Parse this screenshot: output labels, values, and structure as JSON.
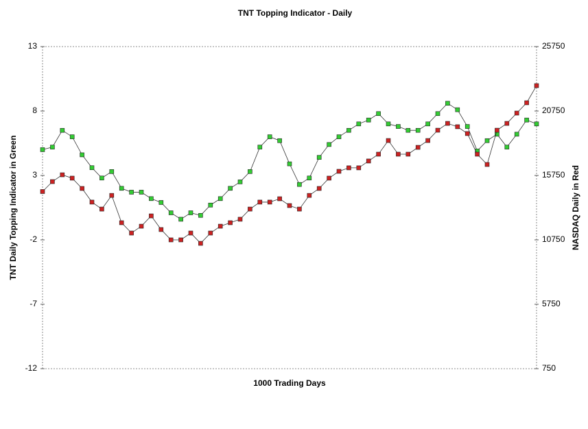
{
  "chart_data": {
    "type": "scatter-line",
    "title": "TNT Topping Indicator - Daily",
    "x_label": "1000 Trading Days",
    "y_label": "TNT Daily Topping Indicator in Green",
    "y2_label": "NASDAQ Daily in Red",
    "x": [
      0,
      20,
      40,
      60,
      80,
      100,
      120,
      140,
      160,
      180,
      200,
      220,
      240,
      260,
      280,
      300,
      320,
      340,
      360,
      380,
      400,
      420,
      440,
      460,
      480,
      500,
      520,
      540,
      560,
      580,
      600,
      620,
      640,
      660,
      680,
      700,
      720,
      740,
      760,
      780,
      800,
      820,
      840,
      860,
      880,
      900,
      920,
      940,
      960,
      980,
      1000
    ],
    "xlim": [
      0,
      1000
    ],
    "ylim": [
      -12,
      13
    ],
    "yticks": [
      -12,
      -7,
      -2,
      3,
      8,
      13
    ],
    "y2lim": [
      750,
      25750
    ],
    "y2ticks": [
      750,
      5750,
      10750,
      15750,
      20750,
      25750
    ],
    "series": [
      {
        "color": "#33cc33",
        "values": [
          5,
          5.2,
          6.5,
          6,
          4.6,
          3.6,
          2.8,
          3.3,
          2,
          1.7,
          1.7,
          1.2,
          0.9,
          0.1,
          -0.4,
          0.1,
          -0.1,
          0.7,
          1.2,
          2,
          2.5,
          3.3,
          5.2,
          6,
          5.7,
          3.9,
          2.3,
          2.8,
          4.4,
          5.4,
          6,
          6.5,
          7,
          7.3,
          7.8,
          7,
          6.8,
          6.5,
          6.5,
          7,
          7.8,
          8.6,
          8.1,
          6.8,
          4.9,
          5.7,
          6.2,
          5.2,
          6.2,
          7.3,
          7
        ]
      },
      {
        "color": "#cc2222",
        "axis": "y2",
        "values": [
          14500,
          15270,
          15800,
          15540,
          14740,
          13680,
          13140,
          14200,
          12080,
          11280,
          11810,
          12610,
          11550,
          10750,
          10750,
          11280,
          10480,
          11280,
          11810,
          12080,
          12350,
          13140,
          13680,
          13680,
          13940,
          13410,
          13140,
          14200,
          14740,
          15540,
          16070,
          16340,
          16340,
          16870,
          17400,
          18460,
          17400,
          17400,
          17930,
          18460,
          19260,
          19790,
          19530,
          19000,
          17400,
          16600,
          19260,
          19790,
          20590,
          21390,
          22720
        ]
      }
    ]
  }
}
